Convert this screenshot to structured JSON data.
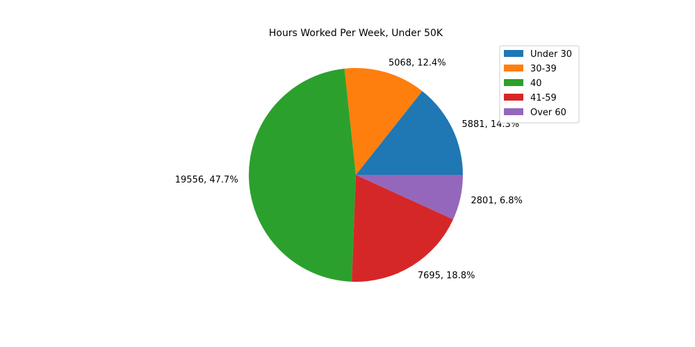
{
  "chart_data": {
    "type": "pie",
    "title": "Hours Worked Per Week, Under 50K",
    "categories": [
      "Under 30",
      "30-39",
      "40",
      "41-59",
      "Over 60"
    ],
    "values": [
      5881,
      5068,
      19556,
      7695,
      2801
    ],
    "percent_labels": [
      "14.3%",
      "12.4%",
      "47.7%",
      "18.8%",
      "6.8%"
    ],
    "slice_labels": [
      "5881, 14.3%",
      "5068, 12.4%",
      "19556, 47.7%",
      "7695, 18.8%",
      "2801, 6.8%"
    ],
    "colors": [
      "#1f77b4",
      "#ff7f0e",
      "#2ca02c",
      "#d62728",
      "#9467bd"
    ],
    "legend": {
      "placement": "upper-right",
      "entries": [
        "Under 30",
        "30-39",
        "40",
        "41-59",
        "Over 60"
      ]
    }
  }
}
